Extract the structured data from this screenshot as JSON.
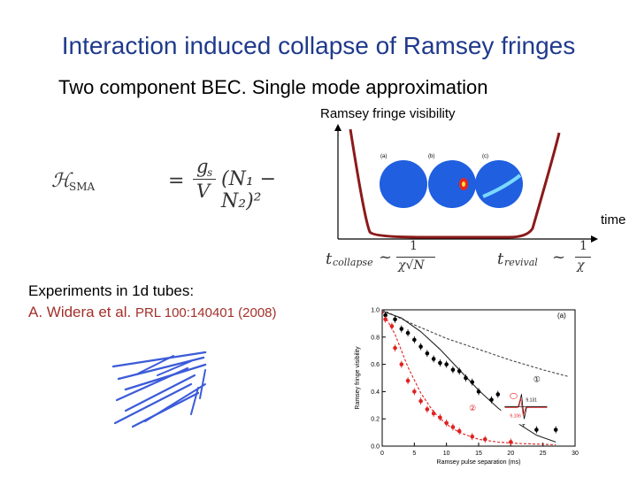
{
  "slide": {
    "title": "Interaction induced collapse of Ramsey fringes",
    "subtitle": "Two component BEC. Single mode approximation"
  },
  "diagram": {
    "y_axis_label": "Ramsey fringe visibility",
    "x_axis_label": "time",
    "panel_labels": [
      "(a)",
      "(b)",
      "(c)"
    ],
    "curve_color": "#8b1a1a",
    "sphere_color": "#1f5fe0"
  },
  "formulas": {
    "hamiltonian_lhs": "ℋ",
    "hamiltonian_sub": "SMA",
    "hamiltonian_num": "g",
    "hamiltonian_num_sub": "s",
    "hamiltonian_den": "V",
    "hamiltonian_rhs": "(N₁ − N₂)²",
    "collapse_t": "t",
    "collapse_sub": "collapse",
    "collapse_num": "1",
    "collapse_den": "χ√N",
    "revival_t": "t",
    "revival_sub": "revival",
    "revival_num": "1",
    "revival_den": "χ"
  },
  "experiment": {
    "heading": "Experiments in 1d tubes:",
    "authors": "A. Widera et al.",
    "reference": "PRL 100:140401 (2008)"
  },
  "chart_data": {
    "type": "scatter",
    "title": "",
    "panel_label": "(a)",
    "xlabel": "Ramsey pulse separation (ms)",
    "ylabel": "Ramsey fringe visibility",
    "xlim": [
      0,
      30
    ],
    "ylim": [
      0,
      1.0
    ],
    "x_ticks": [
      0,
      5,
      10,
      15,
      20,
      25,
      30
    ],
    "y_ticks": [
      0,
      0.2,
      0.4,
      0.6,
      0.8,
      1.0
    ],
    "x_tick_labels": [
      "0",
      "5",
      "10",
      "15",
      "20",
      "25",
      "30"
    ],
    "y_tick_labels": [
      "0.0",
      "0.2",
      "0.4",
      "0.6",
      "0.8",
      "1.0"
    ],
    "series": [
      {
        "name": "①",
        "kind": "points",
        "color": "#000000",
        "x": [
          0.5,
          2,
          3,
          4,
          5,
          6,
          7,
          8,
          9,
          10,
          11,
          12,
          13,
          14,
          15,
          17,
          18,
          20,
          22,
          24,
          27
        ],
        "y": [
          0.96,
          0.93,
          0.86,
          0.83,
          0.78,
          0.73,
          0.68,
          0.64,
          0.61,
          0.6,
          0.56,
          0.55,
          0.5,
          0.47,
          0.4,
          0.34,
          0.38,
          0.27,
          0.17,
          0.12,
          0.12
        ]
      },
      {
        "name": "②",
        "kind": "points",
        "color": "#e02020",
        "x": [
          0.5,
          1.5,
          2,
          3,
          4,
          5,
          6,
          7,
          8,
          9,
          10,
          11,
          12,
          14,
          16,
          20
        ],
        "y": [
          0.93,
          0.88,
          0.72,
          0.6,
          0.48,
          0.4,
          0.33,
          0.27,
          0.24,
          0.21,
          0.17,
          0.14,
          0.11,
          0.07,
          0.05,
          0.03
        ]
      },
      {
        "name": "",
        "kind": "fit-dashed",
        "color": "#444444",
        "x": [
          0,
          5,
          10,
          15,
          20,
          25,
          29
        ],
        "y": [
          1.0,
          0.89,
          0.79,
          0.71,
          0.63,
          0.56,
          0.51
        ]
      },
      {
        "name": "",
        "kind": "fit-solid",
        "color": "#222222",
        "x": [
          0,
          3,
          6,
          9,
          12,
          15,
          18,
          21,
          24,
          27
        ],
        "y": [
          0.99,
          0.94,
          0.84,
          0.71,
          0.56,
          0.41,
          0.28,
          0.17,
          0.08,
          0.03
        ]
      },
      {
        "name": "",
        "kind": "fit-dashed-red",
        "color": "#e02020",
        "x": [
          0,
          2,
          4,
          6,
          8,
          10,
          12,
          15,
          18,
          21,
          27
        ],
        "y": [
          0.99,
          0.82,
          0.58,
          0.39,
          0.25,
          0.16,
          0.1,
          0.05,
          0.03,
          0.02,
          0.01
        ]
      }
    ],
    "inset_labels": [
      "9.131",
      "9.106"
    ]
  }
}
